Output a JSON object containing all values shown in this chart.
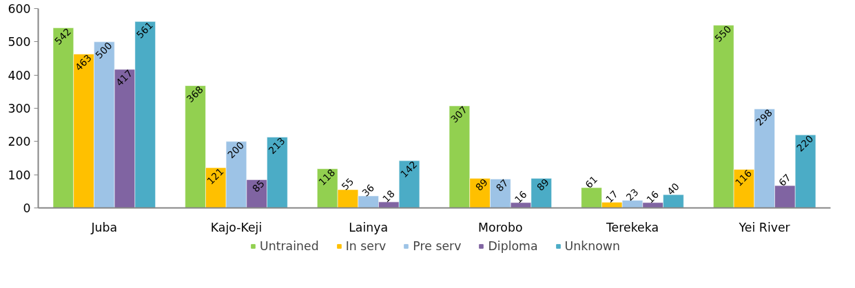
{
  "chart_data": {
    "type": "bar",
    "categories": [
      "Juba",
      "Kajo-Keji",
      "Lainya",
      "Morobo",
      "Terekeka",
      "Yei River"
    ],
    "series": [
      {
        "name": "Untrained",
        "color": "#92d050",
        "values": [
          542,
          368,
          118,
          307,
          61,
          550
        ]
      },
      {
        "name": "In serv",
        "color": "#ffc000",
        "values": [
          463,
          121,
          55,
          89,
          17,
          116
        ]
      },
      {
        "name": "Pre serv",
        "color": "#9dc3e6",
        "values": [
          500,
          200,
          36,
          87,
          23,
          298
        ]
      },
      {
        "name": "Diploma",
        "color": "#8064a2",
        "values": [
          417,
          85,
          18,
          16,
          16,
          67
        ]
      },
      {
        "name": "Unknown",
        "color": "#4bacc6",
        "values": [
          561,
          213,
          142,
          89,
          40,
          220
        ]
      }
    ],
    "ylim": [
      0,
      600
    ],
    "yticks": [
      0,
      100,
      200,
      300,
      400,
      500,
      600
    ],
    "grid": false,
    "legend": "bottom",
    "data_labels": true
  }
}
